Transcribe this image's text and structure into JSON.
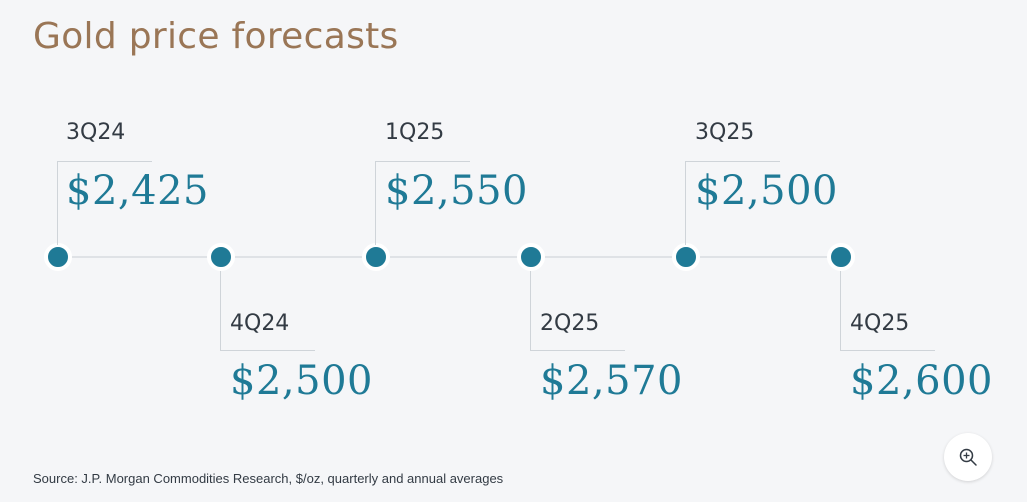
{
  "title": "Gold price forecasts",
  "source": "Source: J.P. Morgan Commodities Research, $/oz, quarterly and annual averages",
  "accent_color": "#1f7a96",
  "title_color": "#9a7656",
  "zoom_icon": "zoom-in-icon",
  "milestones": [
    {
      "quarter": "3Q24",
      "price": "$2,425"
    },
    {
      "quarter": "4Q24",
      "price": "$2,500"
    },
    {
      "quarter": "1Q25",
      "price": "$2,550"
    },
    {
      "quarter": "2Q25",
      "price": "$2,570"
    },
    {
      "quarter": "3Q25",
      "price": "$2,500"
    },
    {
      "quarter": "4Q25",
      "price": "$2,600"
    }
  ]
}
